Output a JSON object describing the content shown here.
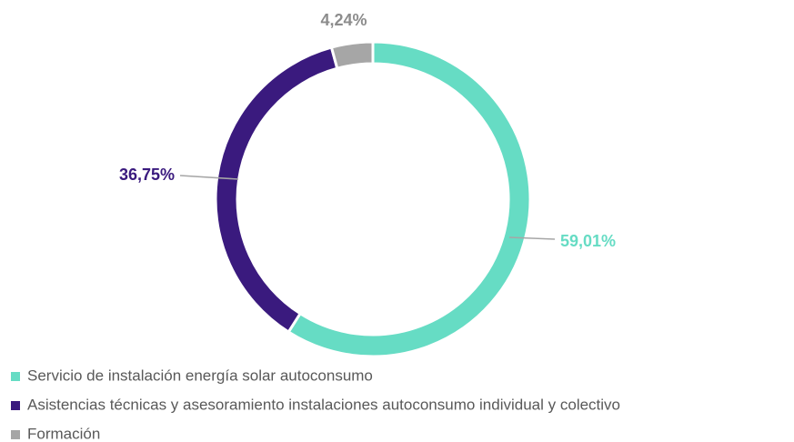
{
  "chart_data": {
    "type": "donut",
    "categories": [
      "Servicio de instalación energía solar autoconsumo",
      "Asistencias técnicas y asesoramiento instalaciones autoconsumo individual y colectivo",
      "Formación"
    ],
    "values": [
      59.01,
      36.75,
      4.24
    ],
    "value_labels": [
      "59,01%",
      "36,75%",
      "4,24%"
    ],
    "colors": [
      "#66dcc4",
      "#3a1a7e",
      "#a6a6a6"
    ],
    "legend": "bottom-left"
  }
}
